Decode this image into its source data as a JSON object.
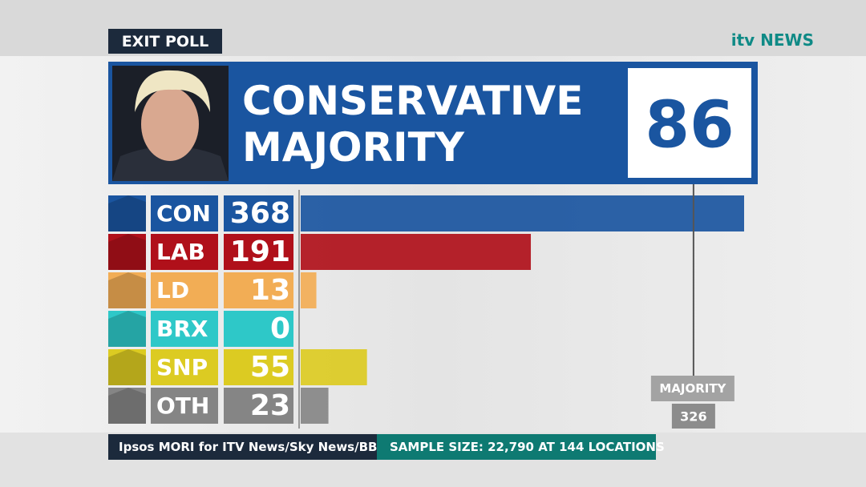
{
  "chart_data": {
    "type": "bar",
    "badge": "EXIT POLL",
    "brand": "itv NEWS",
    "title": [
      "CONSERVATIVE",
      "MAJORITY"
    ],
    "headline_value": 86,
    "categories": [
      "CON",
      "LAB",
      "LD",
      "BRX",
      "SNP",
      "OTH"
    ],
    "values": [
      368,
      191,
      13,
      0,
      55,
      23
    ],
    "colors": [
      "#1a55a0",
      "#b0101a",
      "#f2ad55",
      "#2ec8c8",
      "#dccb22",
      "#858585"
    ],
    "reference": {
      "label": "MAJORITY",
      "value": 326
    },
    "source": "Ipsos MORI for ITV News/Sky News/BBC",
    "note": "SAMPLE SIZE: 22,790 AT 144 LOCATIONS"
  }
}
